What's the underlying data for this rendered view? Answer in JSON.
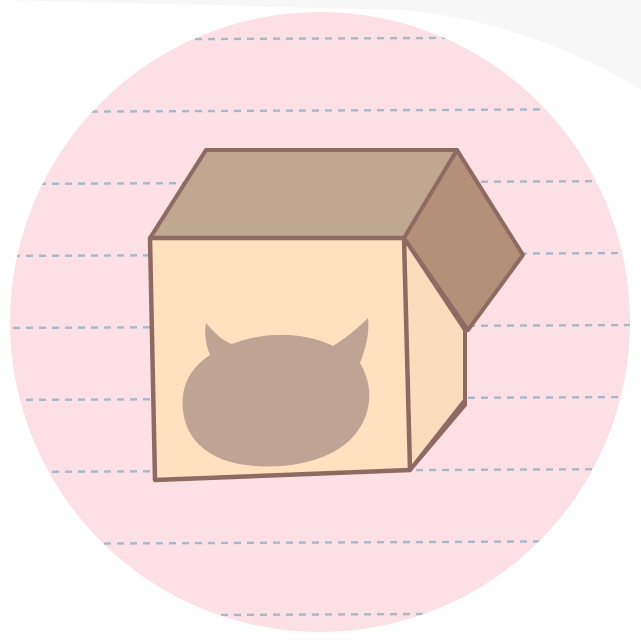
{
  "image": {
    "subject": "cat-in-box-illustration",
    "shape": "circle"
  },
  "colors": {
    "page_background": "#ffffff",
    "circle_fill": "#fde0e6",
    "ruled_line": "#a9b7c6",
    "box_front": "#ffe1bf",
    "box_top": "#bfa790",
    "box_flap": "#b59079",
    "box_side": "#fbdcbc",
    "box_outline": "#8f6a63",
    "cat_silhouette": "#bfa393"
  },
  "icons": [
    "cat-silhouette-icon"
  ]
}
